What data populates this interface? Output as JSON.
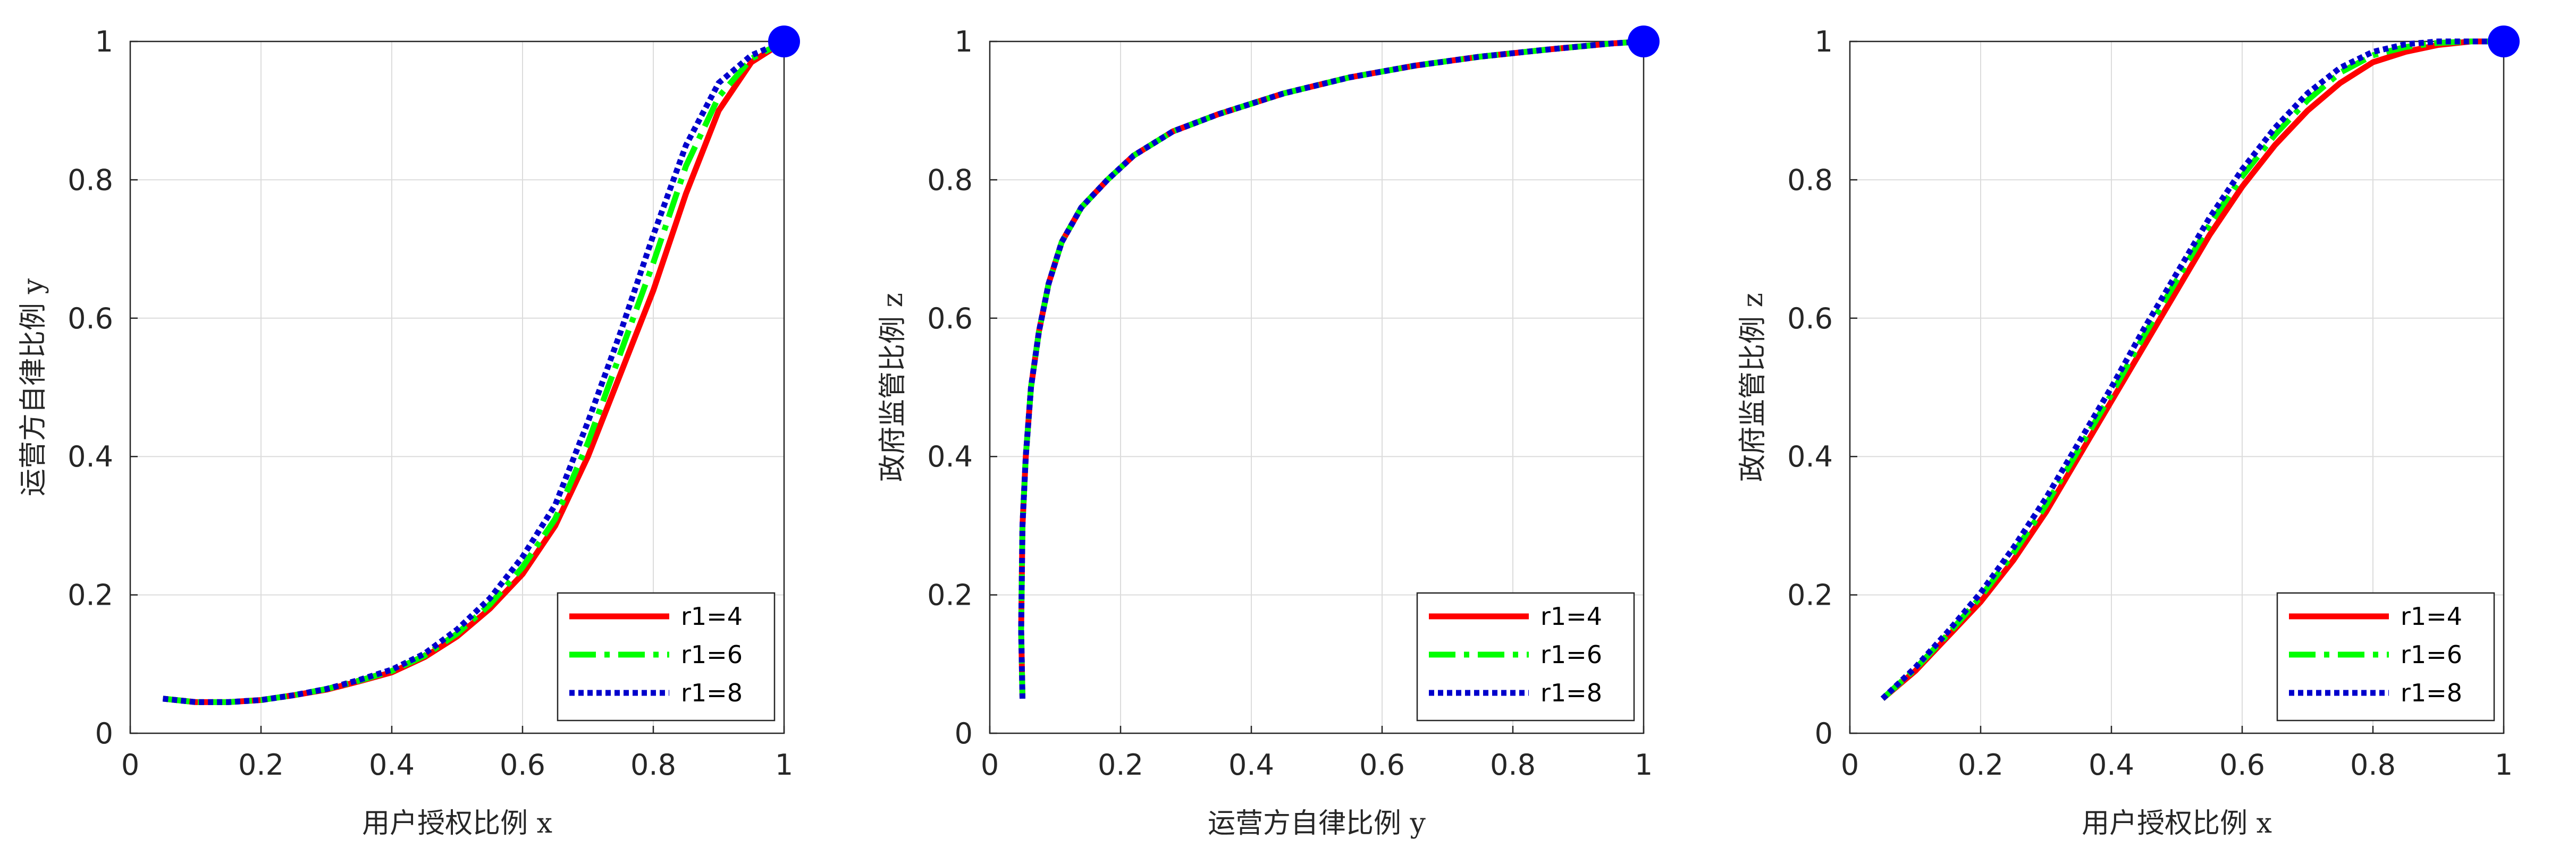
{
  "chart_data": [
    {
      "type": "line",
      "xlabel": "用户授权比例  x",
      "ylabel": "运营方自律比例  y",
      "xlim": [
        0,
        1
      ],
      "ylim": [
        0,
        1
      ],
      "xticks": [
        "0",
        "0.2",
        "0.4",
        "0.6",
        "0.8",
        "1"
      ],
      "yticks": [
        "0",
        "0.2",
        "0.4",
        "0.6",
        "0.8",
        "1"
      ],
      "grid": true,
      "legend": "bottom-right",
      "endpoint": {
        "x": 1,
        "y": 1,
        "color": "#0000ff"
      },
      "series": [
        {
          "name": "r1=4",
          "color": "#ff0000",
          "style": "solid",
          "x": [
            0.05,
            0.1,
            0.15,
            0.2,
            0.25,
            0.3,
            0.35,
            0.4,
            0.45,
            0.5,
            0.55,
            0.6,
            0.65,
            0.7,
            0.75,
            0.8,
            0.85,
            0.9,
            0.95,
            1.0
          ],
          "y": [
            0.05,
            0.045,
            0.045,
            0.048,
            0.055,
            0.063,
            0.075,
            0.088,
            0.11,
            0.14,
            0.18,
            0.23,
            0.3,
            0.4,
            0.52,
            0.64,
            0.78,
            0.9,
            0.97,
            1.0
          ]
        },
        {
          "name": "r1=6",
          "color": "#00ff00",
          "style": "dashdot",
          "x": [
            0.05,
            0.1,
            0.15,
            0.2,
            0.25,
            0.3,
            0.35,
            0.4,
            0.45,
            0.5,
            0.55,
            0.6,
            0.65,
            0.7,
            0.75,
            0.8,
            0.85,
            0.9,
            0.95,
            1.0
          ],
          "y": [
            0.05,
            0.045,
            0.045,
            0.048,
            0.055,
            0.064,
            0.076,
            0.09,
            0.112,
            0.144,
            0.186,
            0.24,
            0.31,
            0.42,
            0.55,
            0.68,
            0.82,
            0.92,
            0.975,
            1.0
          ]
        },
        {
          "name": "r1=8",
          "color": "#0000cc",
          "style": "dotted",
          "x": [
            0.05,
            0.1,
            0.15,
            0.2,
            0.25,
            0.3,
            0.35,
            0.4,
            0.45,
            0.5,
            0.55,
            0.6,
            0.65,
            0.7,
            0.75,
            0.8,
            0.85,
            0.9,
            0.95,
            1.0
          ],
          "y": [
            0.05,
            0.045,
            0.045,
            0.048,
            0.055,
            0.064,
            0.077,
            0.092,
            0.115,
            0.15,
            0.195,
            0.255,
            0.33,
            0.45,
            0.58,
            0.72,
            0.85,
            0.94,
            0.98,
            1.0
          ]
        }
      ]
    },
    {
      "type": "line",
      "xlabel": "运营方自律比例  y",
      "ylabel": "政府监管比例  z",
      "xlim": [
        0,
        1
      ],
      "ylim": [
        0,
        1
      ],
      "xticks": [
        "0",
        "0.2",
        "0.4",
        "0.6",
        "0.8",
        "1"
      ],
      "yticks": [
        "0",
        "0.2",
        "0.4",
        "0.6",
        "0.8",
        "1"
      ],
      "grid": true,
      "legend": "bottom-right",
      "endpoint": {
        "x": 1,
        "y": 1,
        "color": "#0000ff"
      },
      "series": [
        {
          "name": "r1=4",
          "color": "#ff0000",
          "style": "solid",
          "x": [
            0.05,
            0.048,
            0.05,
            0.055,
            0.063,
            0.075,
            0.09,
            0.11,
            0.14,
            0.18,
            0.22,
            0.28,
            0.35,
            0.45,
            0.55,
            0.65,
            0.75,
            0.85,
            0.95,
            1.0
          ],
          "y": [
            0.05,
            0.15,
            0.3,
            0.4,
            0.5,
            0.58,
            0.65,
            0.71,
            0.76,
            0.8,
            0.835,
            0.87,
            0.895,
            0.925,
            0.948,
            0.965,
            0.978,
            0.988,
            0.997,
            1.0
          ]
        },
        {
          "name": "r1=6",
          "color": "#00ff00",
          "style": "dashdot",
          "x": [
            0.05,
            0.048,
            0.05,
            0.055,
            0.063,
            0.075,
            0.09,
            0.11,
            0.14,
            0.18,
            0.22,
            0.28,
            0.35,
            0.45,
            0.55,
            0.65,
            0.75,
            0.85,
            0.95,
            1.0
          ],
          "y": [
            0.05,
            0.15,
            0.3,
            0.4,
            0.5,
            0.58,
            0.65,
            0.71,
            0.76,
            0.8,
            0.835,
            0.87,
            0.895,
            0.925,
            0.948,
            0.965,
            0.978,
            0.988,
            0.997,
            1.0
          ]
        },
        {
          "name": "r1=8",
          "color": "#0000cc",
          "style": "dotted",
          "x": [
            0.05,
            0.048,
            0.05,
            0.055,
            0.063,
            0.075,
            0.09,
            0.11,
            0.14,
            0.18,
            0.22,
            0.28,
            0.35,
            0.45,
            0.55,
            0.65,
            0.75,
            0.85,
            0.95,
            1.0
          ],
          "y": [
            0.05,
            0.15,
            0.3,
            0.4,
            0.5,
            0.58,
            0.65,
            0.71,
            0.76,
            0.8,
            0.835,
            0.87,
            0.895,
            0.925,
            0.948,
            0.965,
            0.978,
            0.988,
            0.997,
            1.0
          ]
        }
      ]
    },
    {
      "type": "line",
      "xlabel": "用户授权比例  x",
      "ylabel": "政府监管比例  z",
      "xlim": [
        0,
        1
      ],
      "ylim": [
        0,
        1
      ],
      "xticks": [
        "0",
        "0.2",
        "0.4",
        "0.6",
        "0.8",
        "1"
      ],
      "yticks": [
        "0",
        "0.2",
        "0.4",
        "0.6",
        "0.8",
        "1"
      ],
      "grid": true,
      "legend": "bottom-right",
      "endpoint": {
        "x": 1,
        "y": 1,
        "color": "#0000ff"
      },
      "series": [
        {
          "name": "r1=4",
          "color": "#ff0000",
          "style": "solid",
          "x": [
            0.05,
            0.1,
            0.15,
            0.2,
            0.25,
            0.3,
            0.35,
            0.4,
            0.45,
            0.5,
            0.55,
            0.6,
            0.65,
            0.7,
            0.75,
            0.8,
            0.85,
            0.9,
            0.95,
            1.0
          ],
          "y": [
            0.05,
            0.09,
            0.14,
            0.19,
            0.25,
            0.32,
            0.4,
            0.48,
            0.56,
            0.64,
            0.72,
            0.79,
            0.85,
            0.9,
            0.94,
            0.97,
            0.985,
            0.995,
            1.0,
            1.0
          ]
        },
        {
          "name": "r1=6",
          "color": "#00ff00",
          "style": "dashdot",
          "x": [
            0.05,
            0.1,
            0.15,
            0.2,
            0.25,
            0.3,
            0.35,
            0.4,
            0.45,
            0.5,
            0.55,
            0.6,
            0.65,
            0.7,
            0.75,
            0.8,
            0.85,
            0.9,
            0.95,
            1.0
          ],
          "y": [
            0.05,
            0.093,
            0.143,
            0.197,
            0.26,
            0.33,
            0.41,
            0.49,
            0.575,
            0.655,
            0.735,
            0.805,
            0.865,
            0.915,
            0.955,
            0.98,
            0.992,
            0.998,
            1.0,
            1.0
          ]
        },
        {
          "name": "r1=8",
          "color": "#0000cc",
          "style": "dotted",
          "x": [
            0.05,
            0.1,
            0.15,
            0.2,
            0.25,
            0.3,
            0.35,
            0.4,
            0.45,
            0.5,
            0.55,
            0.6,
            0.65,
            0.7,
            0.75,
            0.8,
            0.85,
            0.9,
            0.95,
            1.0
          ],
          "y": [
            0.05,
            0.095,
            0.147,
            0.203,
            0.268,
            0.34,
            0.42,
            0.5,
            0.585,
            0.665,
            0.745,
            0.815,
            0.875,
            0.925,
            0.962,
            0.985,
            0.996,
            1.0,
            1.0,
            1.0
          ]
        }
      ]
    }
  ]
}
